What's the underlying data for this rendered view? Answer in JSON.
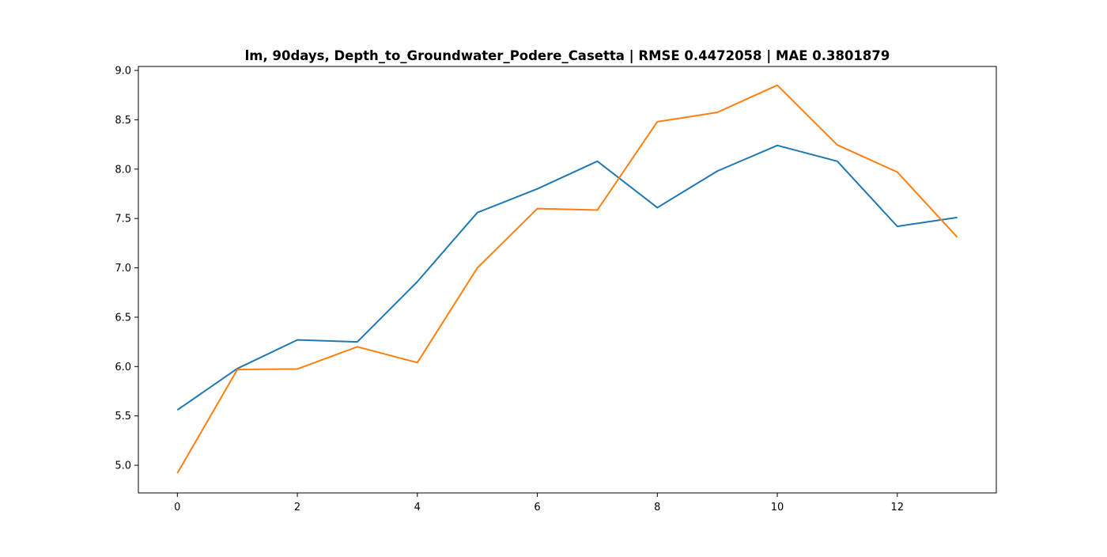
{
  "chart_data": {
    "type": "line",
    "title": "lm, 90days, Depth_to_Groundwater_Podere_Casetta | RMSE 0.4472058 | MAE 0.3801879",
    "xlabel": "",
    "ylabel": "",
    "xlim": [
      -0.65,
      13.65
    ],
    "ylim": [
      4.72,
      9.04
    ],
    "xticks": [
      0,
      2,
      4,
      6,
      8,
      10,
      12
    ],
    "yticks": [
      5.0,
      5.5,
      6.0,
      6.5,
      7.0,
      7.5,
      8.0,
      8.5,
      9.0
    ],
    "ytick_labels": [
      "5.0",
      "5.5",
      "6.0",
      "6.5",
      "7.0",
      "7.5",
      "8.0",
      "8.5",
      "9.0"
    ],
    "grid": false,
    "x": [
      0,
      1,
      2,
      3,
      4,
      5,
      6,
      7,
      8,
      9,
      10,
      11,
      12,
      13
    ],
    "series": [
      {
        "color": "#1f77b4",
        "values": [
          5.56,
          5.98,
          6.27,
          6.25,
          6.86,
          7.56,
          7.8,
          8.08,
          7.61,
          7.98,
          8.24,
          8.08,
          7.42,
          7.51
        ]
      },
      {
        "color": "#ff7f0e",
        "values": [
          4.92,
          5.97,
          5.975,
          6.2,
          6.04,
          7.0,
          7.6,
          7.585,
          8.48,
          8.575,
          8.85,
          8.245,
          7.97,
          7.31
        ]
      }
    ]
  }
}
